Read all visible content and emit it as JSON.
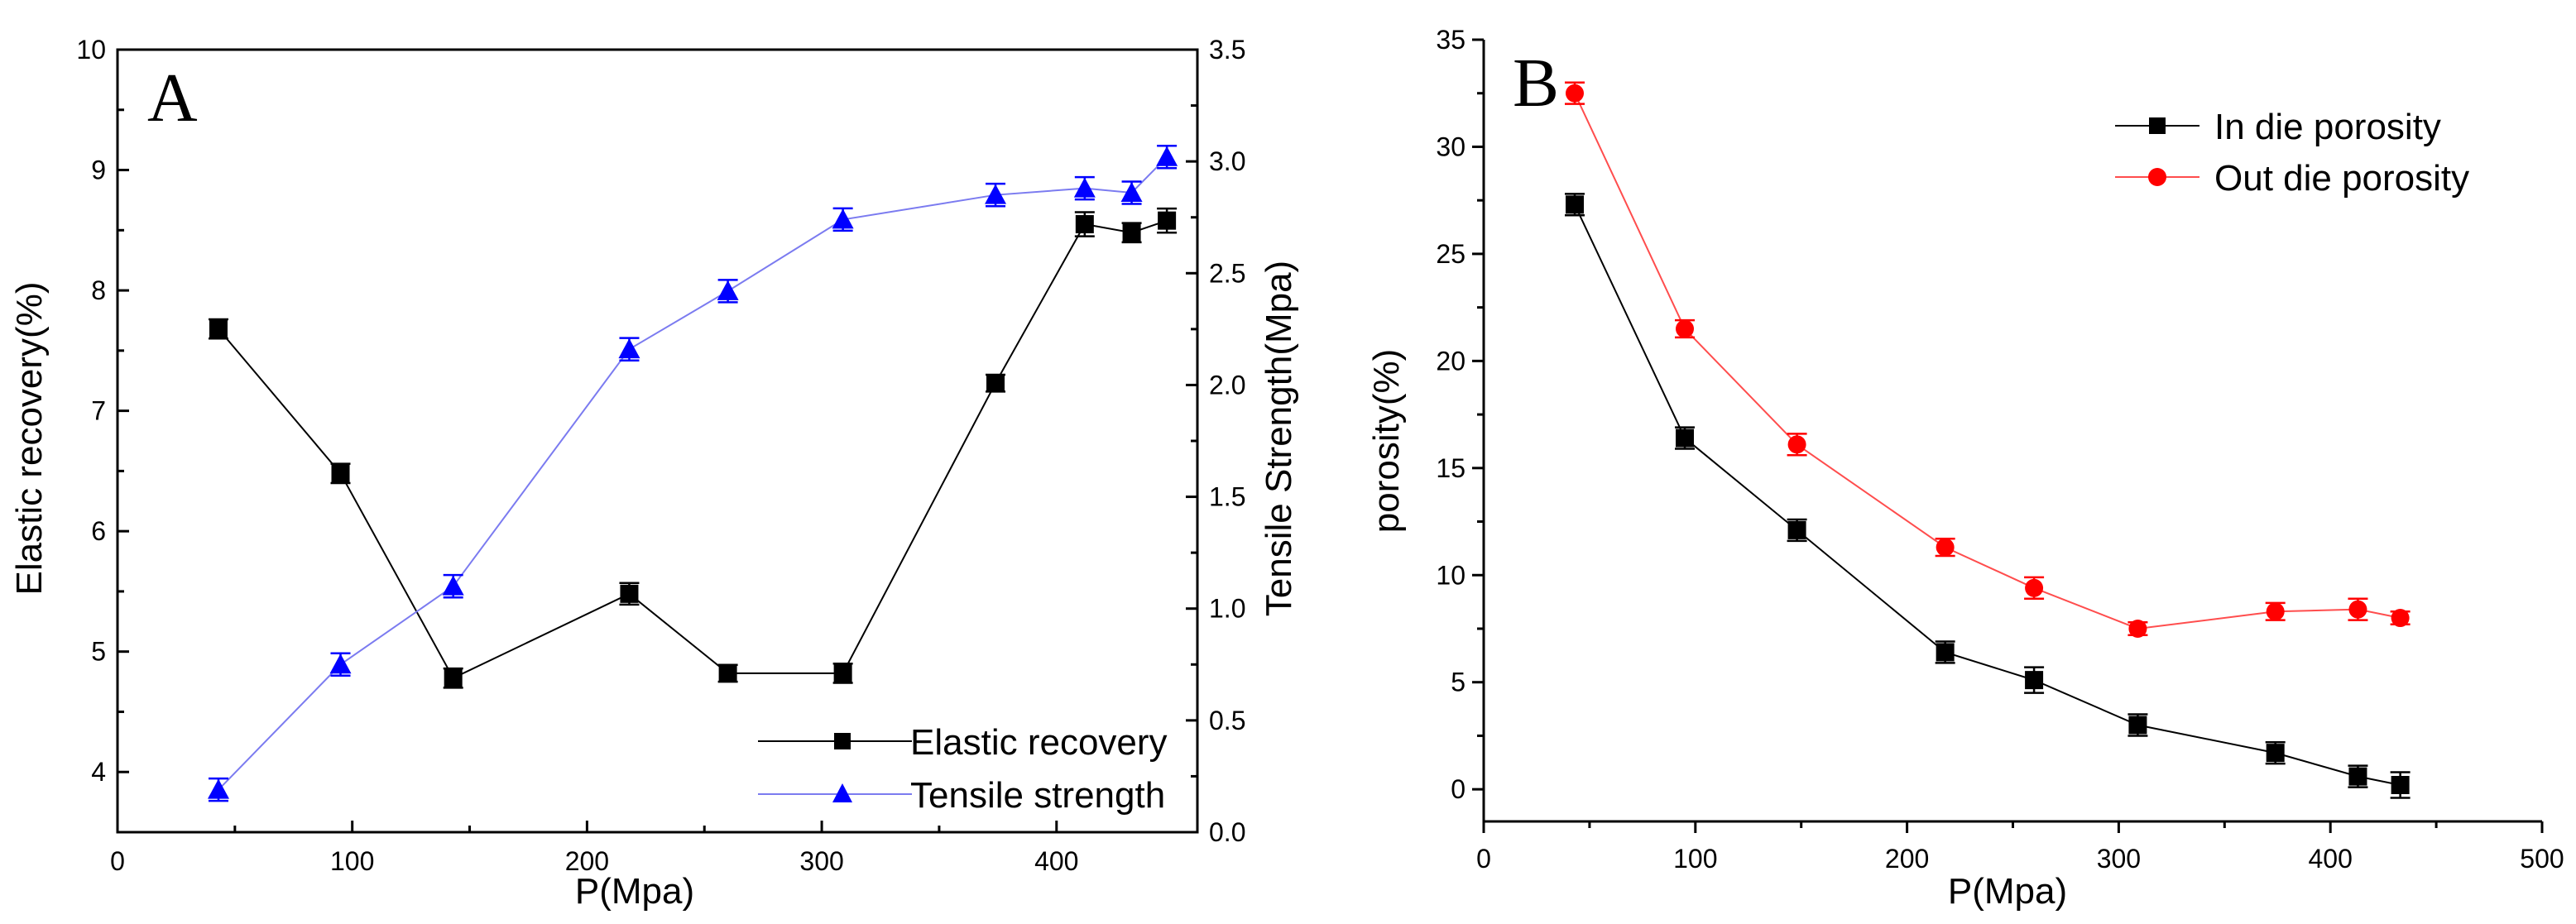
{
  "colors": {
    "axis": "#000000",
    "elastic": "#000000",
    "tensile_line": "#7b7bf0",
    "tensile_marker": "#0000ff",
    "in_die": "#000000",
    "out_die_line": "#ff4d4d",
    "out_die_marker": "#ff0000"
  },
  "chart_data": [
    {
      "type": "line",
      "panel_label": "A",
      "xlabel": "P(Mpa)",
      "ylabel": "Elastic recovery(%)",
      "y2label": "Tensile Strength(Mpa)",
      "xlim": [
        0,
        460
      ],
      "ylim": [
        3.5,
        10
      ],
      "y2lim": [
        0,
        3.5
      ],
      "xticks": [
        0,
        100,
        200,
        300,
        400
      ],
      "yticks": [
        4,
        5,
        6,
        7,
        8,
        9,
        10
      ],
      "y2ticks": [
        0.0,
        0.5,
        1.0,
        1.5,
        2.0,
        2.5,
        3.0,
        3.5
      ],
      "y2tick_labels": [
        "0.0",
        "0.5",
        "1.0",
        "1.5",
        "2.0",
        "2.5",
        "3.0",
        "3.5"
      ],
      "grid": false,
      "legend_position": "bottom-right",
      "series": [
        {
          "name": "Elastic recovery",
          "axis": "left",
          "marker": "square",
          "x": [
            43,
            95,
            143,
            218,
            260,
            309,
            374,
            412,
            432,
            447
          ],
          "y": [
            7.68,
            6.48,
            4.78,
            5.48,
            4.82,
            4.82,
            7.23,
            8.55,
            8.48,
            8.58
          ],
          "err": [
            0.08,
            0.08,
            0.08,
            0.09,
            0.07,
            0.08,
            0.07,
            0.1,
            0.08,
            0.1
          ]
        },
        {
          "name": "Tensile strength",
          "axis": "right",
          "marker": "triangle",
          "x": [
            43,
            95,
            143,
            218,
            260,
            309,
            374,
            412,
            432,
            447
          ],
          "y": [
            0.19,
            0.75,
            1.1,
            2.16,
            2.42,
            2.74,
            2.85,
            2.88,
            2.86,
            3.02
          ],
          "err": [
            0.05,
            0.05,
            0.05,
            0.05,
            0.05,
            0.05,
            0.05,
            0.05,
            0.05,
            0.05
          ]
        }
      ]
    },
    {
      "type": "line",
      "panel_label": "B",
      "xlabel": "P(Mpa)",
      "ylabel": "porosity(%)",
      "xlim": [
        0,
        500
      ],
      "ylim": [
        -1.5,
        35
      ],
      "xticks": [
        0,
        100,
        200,
        300,
        400,
        500
      ],
      "yticks": [
        0,
        5,
        10,
        15,
        20,
        25,
        30,
        35
      ],
      "grid": false,
      "legend_position": "top-right",
      "series": [
        {
          "name": "In die porosity",
          "marker": "square",
          "x": [
            43,
            95,
            148,
            218,
            260,
            309,
            374,
            413,
            433
          ],
          "y": [
            27.3,
            16.4,
            12.1,
            6.4,
            5.1,
            3.0,
            1.7,
            0.6,
            0.2
          ],
          "err": [
            0.5,
            0.5,
            0.5,
            0.5,
            0.6,
            0.5,
            0.5,
            0.5,
            0.6
          ]
        },
        {
          "name": "Out die porosity",
          "marker": "circle",
          "x": [
            43,
            95,
            148,
            218,
            260,
            309,
            374,
            413,
            433
          ],
          "y": [
            32.5,
            21.5,
            16.1,
            11.3,
            9.4,
            7.5,
            8.3,
            8.4,
            8.0
          ],
          "err": [
            0.5,
            0.4,
            0.5,
            0.4,
            0.5,
            0.3,
            0.4,
            0.5,
            0.3
          ]
        }
      ]
    }
  ]
}
